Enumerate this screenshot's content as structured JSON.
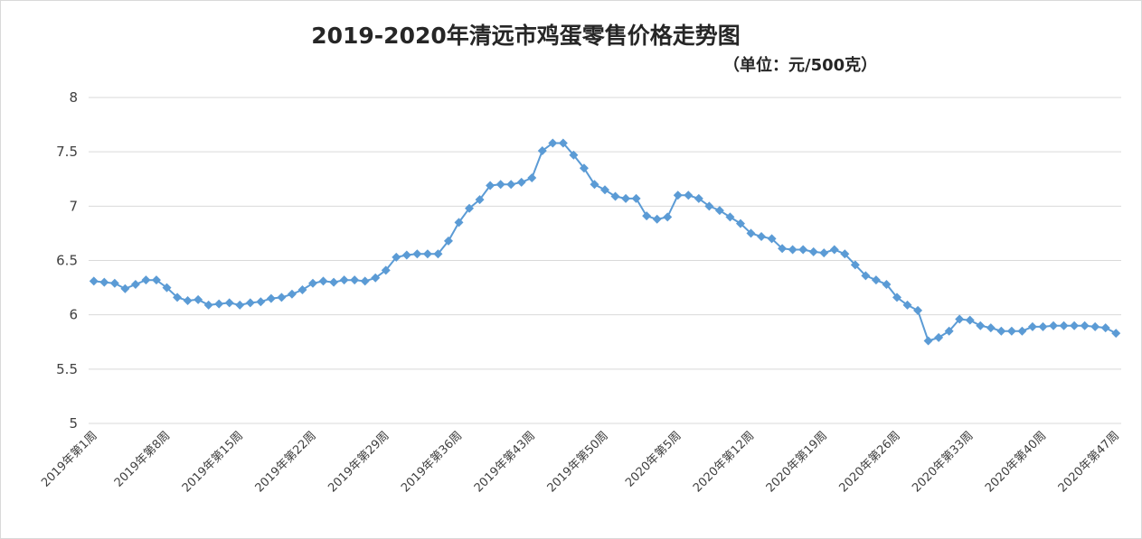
{
  "chart_data": {
    "type": "line",
    "title": "2019-2020年清远市鸡蛋零售价格走势图",
    "subtitle": "（单位：元/500克）",
    "color": "#5b9bd5",
    "marker": "diamond",
    "grid": true,
    "ylim": [
      5,
      8
    ],
    "yticks": [
      "5",
      "5.5",
      "6",
      "6.5",
      "7",
      "7.5",
      "8"
    ],
    "xtick_labels": [
      "2019年第1周",
      "2019年第8周",
      "2019年第15周",
      "2019年第22周",
      "2019年第29周",
      "2019年第36周",
      "2019年第43周",
      "2019年第50周",
      "2020年第5周",
      "2020年第12周",
      "2020年第19周",
      "2020年第26周",
      "2020年第33周",
      "2020年第40周",
      "2020年第47周"
    ],
    "values": [
      6.31,
      6.3,
      6.29,
      6.24,
      6.28,
      6.32,
      6.32,
      6.25,
      6.16,
      6.13,
      6.14,
      6.09,
      6.1,
      6.11,
      6.09,
      6.11,
      6.12,
      6.15,
      6.16,
      6.19,
      6.23,
      6.29,
      6.31,
      6.3,
      6.32,
      6.32,
      6.31,
      6.34,
      6.41,
      6.53,
      6.55,
      6.56,
      6.56,
      6.56,
      6.68,
      6.85,
      6.98,
      7.06,
      7.19,
      7.2,
      7.2,
      7.22,
      7.26,
      7.51,
      7.58,
      7.58,
      7.47,
      7.35,
      7.2,
      7.15,
      7.09,
      7.07,
      7.07,
      6.91,
      6.88,
      6.9,
      7.1,
      7.1,
      7.07,
      7.0,
      6.96,
      6.9,
      6.84,
      6.75,
      6.72,
      6.7,
      6.61,
      6.6,
      6.6,
      6.58,
      6.57,
      6.6,
      6.56,
      6.46,
      6.36,
      6.32,
      6.28,
      6.16,
      6.09,
      6.04,
      5.76,
      5.79,
      5.85,
      5.96,
      5.95,
      5.9,
      5.88,
      5.85,
      5.85,
      5.85,
      5.89,
      5.89,
      5.9,
      5.9,
      5.9,
      5.9,
      5.89,
      5.88,
      5.83
    ]
  }
}
